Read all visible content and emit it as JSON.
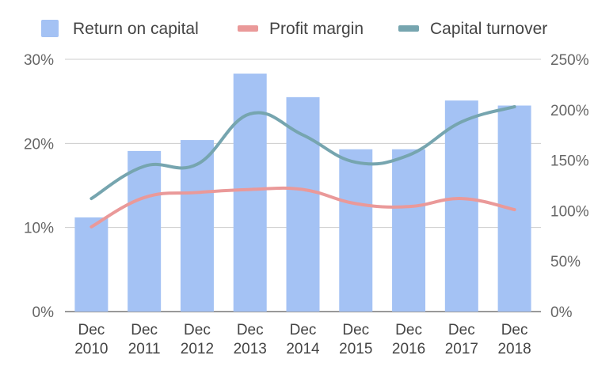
{
  "chart_data": {
    "type": "bar",
    "categories": [
      [
        "Dec",
        "2010"
      ],
      [
        "Dec",
        "2011"
      ],
      [
        "Dec",
        "2012"
      ],
      [
        "Dec",
        "2013"
      ],
      [
        "Dec",
        "2014"
      ],
      [
        "Dec",
        "2015"
      ],
      [
        "Dec",
        "2016"
      ],
      [
        "Dec",
        "2017"
      ],
      [
        "Dec",
        "2018"
      ]
    ],
    "series": [
      {
        "name": "Return on capital",
        "type": "bar",
        "axis": "left",
        "color": "#a4c2f4",
        "values": [
          11.2,
          19.1,
          20.4,
          28.3,
          25.5,
          19.3,
          19.3,
          25.1,
          24.5
        ]
      },
      {
        "name": "Profit margin",
        "type": "line",
        "axis": "right",
        "color": "#ea9999",
        "values": [
          84,
          113,
          118,
          121,
          121,
          107,
          104,
          112,
          101
        ]
      },
      {
        "name": "Capital turnover",
        "type": "line",
        "axis": "right",
        "color": "#76a5af",
        "values": [
          112,
          144,
          146,
          196,
          175,
          148,
          155,
          188,
          203
        ]
      }
    ],
    "y_left": {
      "min": 0,
      "max": 30,
      "ticks": [
        "0%",
        "10%",
        "20%",
        "30%"
      ]
    },
    "y_right": {
      "min": 0,
      "max": 250,
      "ticks": [
        "0%",
        "50%",
        "100%",
        "150%",
        "200%",
        "250%"
      ]
    },
    "grid": true,
    "legend": "top"
  }
}
